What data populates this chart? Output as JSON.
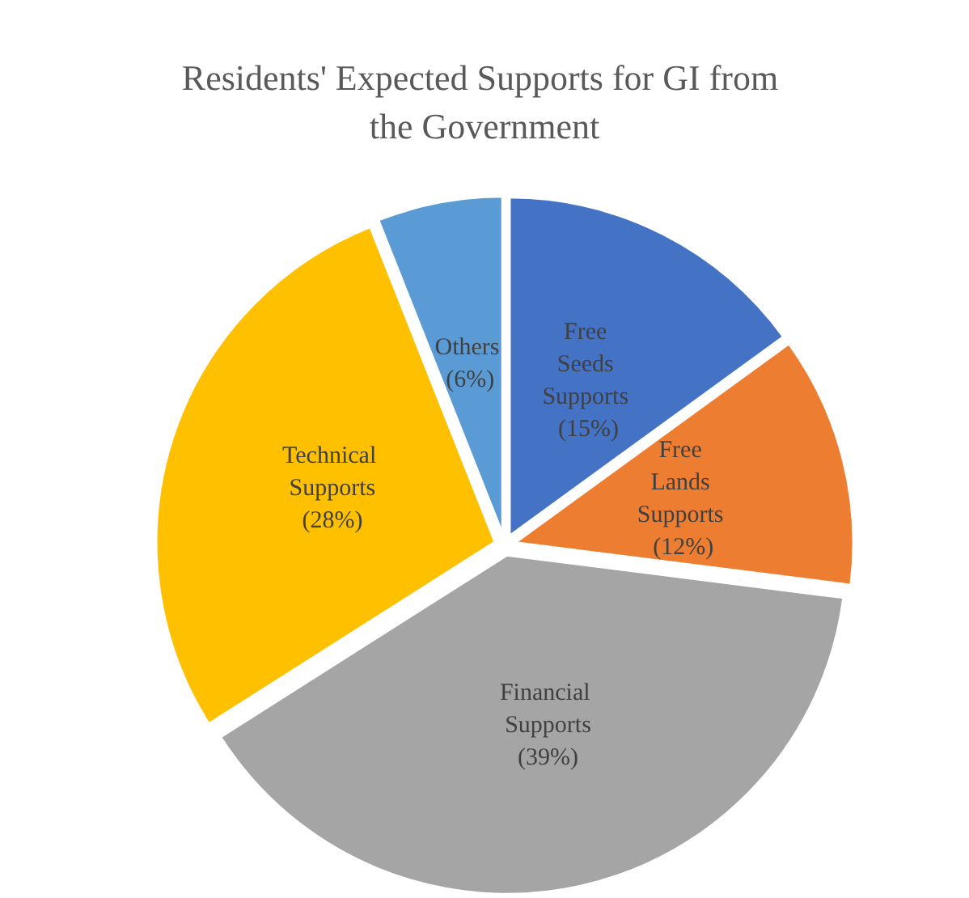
{
  "chart_data": {
    "type": "pie",
    "title": "Residents' Expected Supports for GI from the Government",
    "categories": [
      "Free Seeds Supports",
      "Free Lands Supports",
      "Financial Supports",
      "Technical Supports",
      "Others"
    ],
    "values": [
      15,
      12,
      39,
      28,
      6
    ],
    "colors": [
      "#4472c4",
      "#ed7d31",
      "#a5a5a5",
      "#ffc000",
      "#5b9bd5"
    ],
    "value_labels": [
      "(15%)",
      "(12%)",
      "(39%)",
      "(28%)",
      "(6%)"
    ],
    "legend": false
  }
}
